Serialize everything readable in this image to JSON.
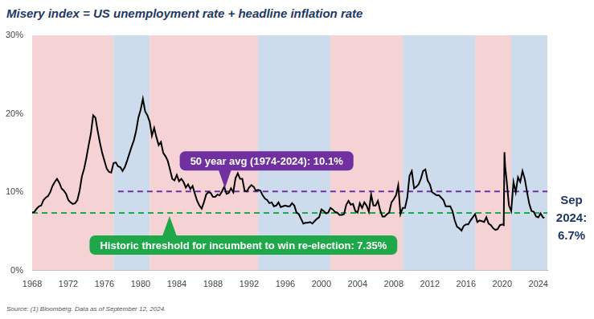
{
  "chart_data": {
    "type": "line",
    "title": "Misery index = US unemployment rate + headline inflation rate",
    "source": "Source: (1) Bloomberg. Data as of September 12, 2024.",
    "x": [
      1968,
      1968.25,
      1968.5,
      1968.75,
      1969,
      1969.25,
      1969.5,
      1969.75,
      1970,
      1970.25,
      1970.5,
      1970.75,
      1971,
      1971.25,
      1971.5,
      1971.75,
      1972,
      1972.25,
      1972.5,
      1972.75,
      1973,
      1973.25,
      1973.5,
      1973.75,
      1974,
      1974.25,
      1974.5,
      1974.75,
      1975,
      1975.25,
      1975.5,
      1975.75,
      1976,
      1976.25,
      1976.5,
      1976.75,
      1977,
      1977.25,
      1977.5,
      1977.75,
      1978,
      1978.25,
      1978.5,
      1978.75,
      1979,
      1979.25,
      1979.5,
      1979.75,
      1980,
      1980.25,
      1980.5,
      1980.75,
      1981,
      1981.25,
      1981.5,
      1981.75,
      1982,
      1982.25,
      1982.5,
      1982.75,
      1983,
      1983.25,
      1983.5,
      1983.75,
      1984,
      1984.25,
      1984.5,
      1984.75,
      1985,
      1985.25,
      1985.5,
      1985.75,
      1986,
      1986.25,
      1986.5,
      1986.75,
      1987,
      1987.25,
      1987.5,
      1987.75,
      1988,
      1988.25,
      1988.5,
      1988.75,
      1989,
      1989.25,
      1989.5,
      1989.75,
      1990,
      1990.25,
      1990.5,
      1990.75,
      1991,
      1991.25,
      1991.5,
      1991.75,
      1992,
      1992.25,
      1992.5,
      1992.75,
      1993,
      1993.25,
      1993.5,
      1993.75,
      1994,
      1994.25,
      1994.5,
      1994.75,
      1995,
      1995.25,
      1995.5,
      1995.75,
      1996,
      1996.25,
      1996.5,
      1996.75,
      1997,
      1997.25,
      1997.5,
      1997.75,
      1998,
      1998.25,
      1998.5,
      1998.75,
      1999,
      1999.25,
      1999.5,
      1999.75,
      2000,
      2000.25,
      2000.5,
      2000.75,
      2001,
      2001.25,
      2001.5,
      2001.75,
      2002,
      2002.25,
      2002.5,
      2002.75,
      2003,
      2003.25,
      2003.5,
      2003.75,
      2004,
      2004.25,
      2004.5,
      2004.75,
      2005,
      2005.25,
      2005.5,
      2005.75,
      2006,
      2006.25,
      2006.5,
      2006.75,
      2007,
      2007.25,
      2007.5,
      2007.75,
      2008,
      2008.25,
      2008.5,
      2008.75,
      2009,
      2009.25,
      2009.5,
      2009.75,
      2010,
      2010.25,
      2010.5,
      2010.75,
      2011,
      2011.25,
      2011.5,
      2011.75,
      2012,
      2012.25,
      2012.5,
      2012.75,
      2013,
      2013.25,
      2013.5,
      2013.75,
      2014,
      2014.25,
      2014.5,
      2014.75,
      2015,
      2015.25,
      2015.5,
      2015.75,
      2016,
      2016.25,
      2016.5,
      2016.75,
      2017,
      2017.25,
      2017.5,
      2017.75,
      2018,
      2018.25,
      2018.5,
      2018.75,
      2019,
      2019.25,
      2019.5,
      2019.75,
      2020,
      2020.17,
      2020.25,
      2020.33,
      2020.5,
      2020.75,
      2021,
      2021.25,
      2021.5,
      2021.75,
      2022,
      2022.25,
      2022.5,
      2022.75,
      2023,
      2023.25,
      2023.5,
      2023.75,
      2024,
      2024.25,
      2024.5,
      2024.67
    ],
    "values": [
      7.4,
      7.5,
      7.9,
      8.2,
      8.3,
      9.0,
      9.3,
      9.5,
      10.0,
      10.8,
      11.3,
      11.7,
      11.2,
      10.5,
      10.2,
      9.8,
      9.0,
      8.7,
      8.5,
      8.6,
      9.0,
      10.2,
      12.0,
      13.0,
      14.4,
      16.0,
      17.5,
      19.8,
      19.5,
      17.8,
      16.3,
      15.0,
      14.0,
      13.0,
      12.6,
      12.5,
      13.7,
      13.8,
      13.3,
      13.2,
      12.7,
      13.2,
      14.0,
      14.9,
      15.8,
      16.6,
      17.8,
      19.5,
      20.5,
      21.9,
      20.3,
      19.8,
      19.0,
      17.2,
      18.2,
      17.0,
      16.0,
      16.4,
      15.0,
      14.6,
      14.0,
      12.9,
      11.7,
      11.5,
      12.2,
      11.4,
      11.7,
      11.3,
      10.6,
      11.0,
      10.4,
      10.8,
      9.8,
      8.9,
      8.3,
      7.9,
      8.7,
      9.7,
      10.0,
      9.9,
      9.4,
      9.4,
      9.7,
      9.6,
      10.1,
      10.7,
      9.8,
      9.9,
      10.5,
      10.0,
      11.8,
      12.4,
      11.7,
      11.7,
      10.2,
      10.1,
      10.6,
      10.9,
      10.7,
      10.2,
      10.3,
      10.2,
      9.6,
      9.2,
      9.0,
      8.6,
      8.7,
      8.2,
      8.3,
      8.7,
      8.1,
      8.2,
      8.3,
      8.2,
      8.2,
      8.6,
      8.3,
      7.4,
      7.2,
      6.6,
      6.0,
      6.1,
      6.1,
      6.2,
      6.0,
      6.3,
      6.6,
      6.8,
      7.8,
      7.6,
      7.3,
      7.4,
      8.0,
      7.8,
      7.5,
      7.4,
      7.1,
      7.1,
      7.2,
      8.4,
      8.9,
      8.4,
      8.5,
      7.6,
      7.4,
      8.6,
      8.0,
      8.7,
      8.3,
      7.5,
      9.7,
      8.3,
      8.3,
      8.9,
      7.7,
      6.9,
      6.9,
      7.2,
      7.4,
      8.7,
      9.1,
      9.6,
      10.9,
      7.2,
      8.0,
      8.0,
      9.3,
      12.1,
      12.7,
      10.5,
      10.7,
      11.0,
      11.7,
      12.7,
      12.9,
      11.5,
      11.0,
      10.0,
      9.8,
      9.6,
      9.6,
      9.3,
      9.0,
      8.2,
      8.2,
      8.2,
      7.6,
      6.4,
      5.6,
      5.4,
      5.1,
      5.7,
      5.9,
      5.9,
      6.4,
      6.8,
      7.2,
      6.2,
      6.4,
      6.3,
      6.2,
      6.8,
      6.0,
      5.8,
      5.4,
      5.2,
      5.3,
      5.8,
      5.9,
      5.8,
      15.1,
      13.3,
      11.4,
      8.3,
      7.6,
      11.3,
      10.0,
      11.9,
      11.3,
      12.7,
      11.7,
      10.0,
      8.5,
      7.6,
      7.5,
      6.9,
      6.8,
      7.3,
      6.8,
      6.7
    ],
    "color": "#000000",
    "xlim": [
      1968,
      2025
    ],
    "xticks": [
      1968,
      1972,
      1976,
      1980,
      1984,
      1988,
      1992,
      1996,
      2000,
      2004,
      2008,
      2012,
      2016,
      2020,
      2024
    ],
    "ylim": [
      0,
      30
    ],
    "yticks": [
      {
        "value": 0,
        "label": "0%"
      },
      {
        "value": 10,
        "label": "10%"
      },
      {
        "value": 20,
        "label": "20%"
      },
      {
        "value": 30,
        "label": "30%"
      }
    ],
    "grid": false,
    "periods": [
      {
        "start": 1968,
        "end": 1977,
        "color": "#f5d3d5"
      },
      {
        "start": 1977,
        "end": 1981,
        "color": "#cddcec"
      },
      {
        "start": 1981,
        "end": 1993,
        "color": "#f5d3d5"
      },
      {
        "start": 1993,
        "end": 2001,
        "color": "#cddcec"
      },
      {
        "start": 2001,
        "end": 2009,
        "color": "#f5d3d5"
      },
      {
        "start": 2009,
        "end": 2017,
        "color": "#cddcec"
      },
      {
        "start": 2017,
        "end": 2021,
        "color": "#f5d3d5"
      },
      {
        "start": 2021,
        "end": 2025,
        "color": "#cddcec"
      }
    ],
    "reference_lines": [
      {
        "label": "50 year avg (1974-2024): 10.1%",
        "value": 10.1,
        "start": 1977.5,
        "end": 2025,
        "color": "#7030a0"
      },
      {
        "label": "Historic threshold for incumbent to win re-election: 7.35%",
        "value": 7.35,
        "start": 1968,
        "end": 2025,
        "color": "#1fa84a"
      }
    ],
    "end_label": "Sep 2024: 6.7%"
  }
}
